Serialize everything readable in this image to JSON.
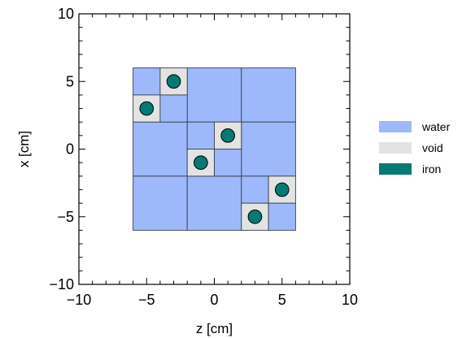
{
  "chart_data": {
    "type": "geometry",
    "xlabel": "z [cm]",
    "ylabel": "x [cm]",
    "xlim": [
      -10,
      10
    ],
    "ylim": [
      -10,
      10
    ],
    "xticks": [
      -10,
      -5,
      0,
      5,
      10
    ],
    "yticks": [
      -10,
      -5,
      0,
      5,
      10
    ],
    "xtick_labels": [
      "−10",
      "−5",
      "0",
      "5",
      "10"
    ],
    "ytick_labels": [
      "−10",
      "−5",
      "0",
      "5",
      "10"
    ],
    "minor_tick_step": 1,
    "grid": false,
    "legend_position": "right",
    "materials": {
      "water": {
        "label": "water",
        "color": "#9db9fb"
      },
      "void": {
        "label": "void",
        "color": "#e3e3e3"
      },
      "iron": {
        "label": "iron",
        "color": "#047a72"
      }
    },
    "cells": [
      {
        "material": "water",
        "x": [
          -2,
          2
        ],
        "y": [
          2,
          6
        ]
      },
      {
        "material": "water",
        "x": [
          2,
          6
        ],
        "y": [
          2,
          6
        ]
      },
      {
        "material": "water",
        "x": [
          -6,
          -2
        ],
        "y": [
          -2,
          2
        ]
      },
      {
        "material": "water",
        "x": [
          2,
          6
        ],
        "y": [
          -2,
          2
        ]
      },
      {
        "material": "water",
        "x": [
          -6,
          -2
        ],
        "y": [
          -6,
          -2
        ]
      },
      {
        "material": "water",
        "x": [
          -2,
          2
        ],
        "y": [
          -6,
          -2
        ]
      },
      {
        "material": "water",
        "x": [
          -6,
          -4
        ],
        "y": [
          4,
          6
        ]
      },
      {
        "material": "void",
        "x": [
          -4,
          -2
        ],
        "y": [
          4,
          6
        ]
      },
      {
        "material": "void",
        "x": [
          -6,
          -4
        ],
        "y": [
          2,
          4
        ]
      },
      {
        "material": "water",
        "x": [
          -4,
          -2
        ],
        "y": [
          2,
          4
        ]
      },
      {
        "material": "water",
        "x": [
          -2,
          0
        ],
        "y": [
          0,
          2
        ]
      },
      {
        "material": "void",
        "x": [
          0,
          2
        ],
        "y": [
          0,
          2
        ]
      },
      {
        "material": "void",
        "x": [
          -2,
          0
        ],
        "y": [
          -2,
          0
        ]
      },
      {
        "material": "water",
        "x": [
          0,
          2
        ],
        "y": [
          -2,
          0
        ]
      },
      {
        "material": "water",
        "x": [
          2,
          4
        ],
        "y": [
          -4,
          -2
        ]
      },
      {
        "material": "void",
        "x": [
          4,
          6
        ],
        "y": [
          -4,
          -2
        ]
      },
      {
        "material": "void",
        "x": [
          2,
          4
        ],
        "y": [
          -6,
          -4
        ]
      },
      {
        "material": "water",
        "x": [
          4,
          6
        ],
        "y": [
          -6,
          -4
        ]
      }
    ],
    "rods": [
      {
        "material": "iron",
        "center": [
          -3,
          5
        ],
        "radius": 0.5
      },
      {
        "material": "iron",
        "center": [
          -5,
          3
        ],
        "radius": 0.5
      },
      {
        "material": "iron",
        "center": [
          1,
          1
        ],
        "radius": 0.5
      },
      {
        "material": "iron",
        "center": [
          -1,
          -1
        ],
        "radius": 0.5
      },
      {
        "material": "iron",
        "center": [
          5,
          -3
        ],
        "radius": 0.5
      },
      {
        "material": "iron",
        "center": [
          3,
          -5
        ],
        "radius": 0.5
      }
    ],
    "legend": [
      {
        "material": "water",
        "label": "water"
      },
      {
        "material": "void",
        "label": "void"
      },
      {
        "material": "iron",
        "label": "iron"
      }
    ]
  }
}
